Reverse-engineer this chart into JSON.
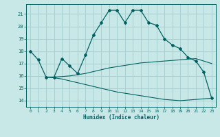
{
  "title": "",
  "xlabel": "Humidex (Indice chaleur)",
  "bg_color": "#c8e8e8",
  "line_color": "#006060",
  "grid_color": "#a8d0d0",
  "xlim": [
    -0.5,
    23.5
  ],
  "ylim": [
    13.5,
    21.8
  ],
  "yticks": [
    14,
    15,
    16,
    17,
    18,
    19,
    20,
    21
  ],
  "xticks": [
    0,
    1,
    2,
    3,
    4,
    5,
    6,
    7,
    8,
    9,
    10,
    11,
    12,
    13,
    14,
    15,
    16,
    17,
    18,
    19,
    20,
    21,
    22,
    23
  ],
  "main_x": [
    0,
    1,
    2,
    3,
    4,
    5,
    6,
    7,
    8,
    9,
    10,
    11,
    12,
    13,
    14,
    15,
    16,
    17,
    18,
    19,
    20,
    21,
    22,
    23
  ],
  "main_y": [
    18.0,
    17.3,
    15.9,
    15.9,
    17.4,
    16.8,
    16.2,
    17.7,
    19.3,
    20.3,
    21.3,
    21.3,
    20.3,
    21.3,
    21.3,
    20.3,
    20.1,
    19.0,
    18.5,
    18.2,
    17.5,
    17.2,
    16.3,
    14.2
  ],
  "upper_x": [
    2,
    3,
    4,
    5,
    6,
    7,
    8,
    9,
    10,
    11,
    12,
    13,
    14,
    15,
    16,
    17,
    18,
    19,
    20,
    21,
    22,
    23
  ],
  "upper_y": [
    15.9,
    15.9,
    15.95,
    16.0,
    16.1,
    16.2,
    16.35,
    16.5,
    16.65,
    16.75,
    16.85,
    16.95,
    17.05,
    17.1,
    17.15,
    17.2,
    17.25,
    17.3,
    17.35,
    17.4,
    17.2,
    17.0
  ],
  "lower_x": [
    2,
    3,
    4,
    5,
    6,
    7,
    8,
    9,
    10,
    11,
    12,
    13,
    14,
    15,
    16,
    17,
    18,
    19,
    20,
    21,
    22,
    23
  ],
  "lower_y": [
    15.9,
    15.85,
    15.75,
    15.6,
    15.45,
    15.3,
    15.15,
    15.0,
    14.85,
    14.7,
    14.6,
    14.5,
    14.4,
    14.3,
    14.2,
    14.1,
    14.05,
    14.0,
    14.05,
    14.1,
    14.15,
    14.2
  ]
}
